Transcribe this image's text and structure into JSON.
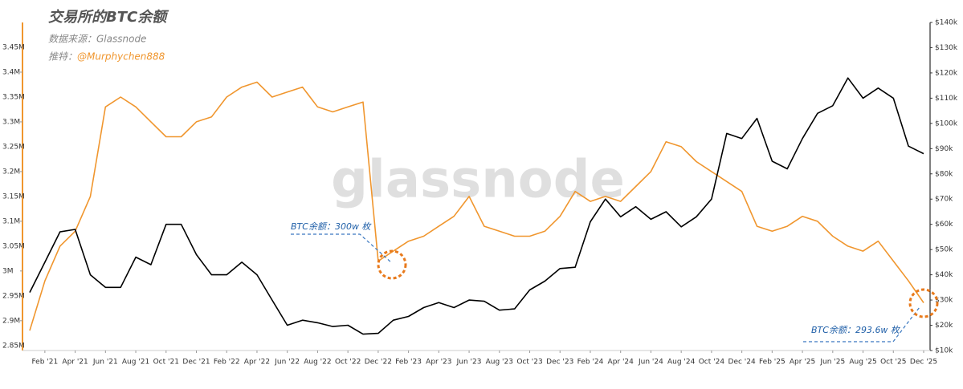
{
  "chart_data": {
    "type": "line",
    "title": "交易所的BTC余额",
    "subtitle": "数据来源：Glassnode",
    "credit_label": "推特：",
    "credit_handle": "@Murphychen888",
    "watermark": "glassnode",
    "annotations": [
      "BTC余额：300w 枚",
      "BTC余额：293.6w 枚"
    ],
    "categories": [
      null,
      "Feb '21",
      null,
      "Apr '21",
      null,
      "Jun '21",
      null,
      "Aug '21",
      null,
      "Oct '21",
      null,
      "Dec '21",
      null,
      "Feb '22",
      null,
      "Apr '22",
      null,
      "Jun '22",
      null,
      "Aug '22",
      null,
      "Oct '22",
      null,
      "Dec '22",
      null,
      "Feb '23",
      null,
      "Apr '23",
      null,
      "Jun '23",
      null,
      "Aug '23",
      null,
      "Oct '23",
      null,
      "Dec '23",
      null,
      "Feb '24",
      null,
      "Apr '24",
      null,
      "Jun '24",
      null,
      "Aug '24",
      null,
      "Oct '24",
      null,
      "Dec '24",
      null,
      "Feb '25",
      null,
      "Apr '25",
      null,
      "Jun '25",
      null,
      "Aug '25",
      null,
      "Oct '25",
      null,
      "Dec '25"
    ],
    "series": [
      {
        "color": "#f0962e",
        "values": [
          2880000,
          2980000,
          3050000,
          3080000,
          3150000,
          3330000,
          3350000,
          3330000,
          3300000,
          3270000,
          3270000,
          3300000,
          3310000,
          3350000,
          3370000,
          3380000,
          3350000,
          3360000,
          3370000,
          3330000,
          3320000,
          3330000,
          3340000,
          3020000,
          3040000,
          3060000,
          3070000,
          3090000,
          3110000,
          3150000,
          3090000,
          3080000,
          3070000,
          3070000,
          3080000,
          3110000,
          3160000,
          3140000,
          3150000,
          3140000,
          3170000,
          3200000,
          3260000,
          3250000,
          3220000,
          3200000,
          3180000,
          3160000,
          3090000,
          3080000,
          3090000,
          3110000,
          3100000,
          3070000,
          3050000,
          3040000,
          3060000,
          3020000,
          2980000,
          2936000
        ]
      },
      {
        "color": "#000000",
        "axis": "y2",
        "values": [
          33000,
          45000,
          57000,
          58000,
          40000,
          35000,
          35000,
          47000,
          44000,
          60000,
          60000,
          48000,
          40000,
          40000,
          45000,
          40000,
          30000,
          20000,
          22000,
          21000,
          19500,
          20000,
          16500,
          16800,
          22000,
          23500,
          27000,
          29000,
          27000,
          30000,
          29500,
          26000,
          26500,
          34000,
          37500,
          42500,
          43000,
          61000,
          70000,
          63000,
          67000,
          62000,
          65000,
          59000,
          63000,
          70000,
          96000,
          94000,
          102000,
          85000,
          82000,
          94000,
          104000,
          107000,
          118000,
          110000,
          114000,
          110000,
          91000,
          88000
        ]
      }
    ],
    "ylim": [
      2840000,
      3500000
    ],
    "yticks": [
      {
        "value": 2850000,
        "label": "2.85M"
      },
      {
        "value": 2900000,
        "label": "2.9M"
      },
      {
        "value": 2950000,
        "label": "2.95M"
      },
      {
        "value": 3000000,
        "label": "3M"
      },
      {
        "value": 3050000,
        "label": "3.05M"
      },
      {
        "value": 3100000,
        "label": "3.1M"
      },
      {
        "value": 3150000,
        "label": "3.15M"
      },
      {
        "value": 3200000,
        "label": "3.2M"
      },
      {
        "value": 3250000,
        "label": "3.25M"
      },
      {
        "value": 3300000,
        "label": "3.3M"
      },
      {
        "value": 3350000,
        "label": "3.35M"
      },
      {
        "value": 3400000,
        "label": "3.4M"
      },
      {
        "value": 3450000,
        "label": "3.45M"
      }
    ],
    "y2lim": [
      10000,
      140000
    ],
    "y2ticks": [
      {
        "value": 10000,
        "label": "$10k"
      },
      {
        "value": 20000,
        "label": "$20k"
      },
      {
        "value": 30000,
        "label": "$30k"
      },
      {
        "value": 40000,
        "label": "$40k"
      },
      {
        "value": 50000,
        "label": "$50k"
      },
      {
        "value": 60000,
        "label": "$60k"
      },
      {
        "value": 70000,
        "label": "$70k"
      },
      {
        "value": 80000,
        "label": "$80k"
      },
      {
        "value": 90000,
        "label": "$90k"
      },
      {
        "value": 100000,
        "label": "$100k"
      },
      {
        "value": 110000,
        "label": "$110k"
      },
      {
        "value": 120000,
        "label": "$120k"
      },
      {
        "value": 130000,
        "label": "$130k"
      },
      {
        "value": 140000,
        "label": "$140k"
      }
    ],
    "grid": false
  }
}
